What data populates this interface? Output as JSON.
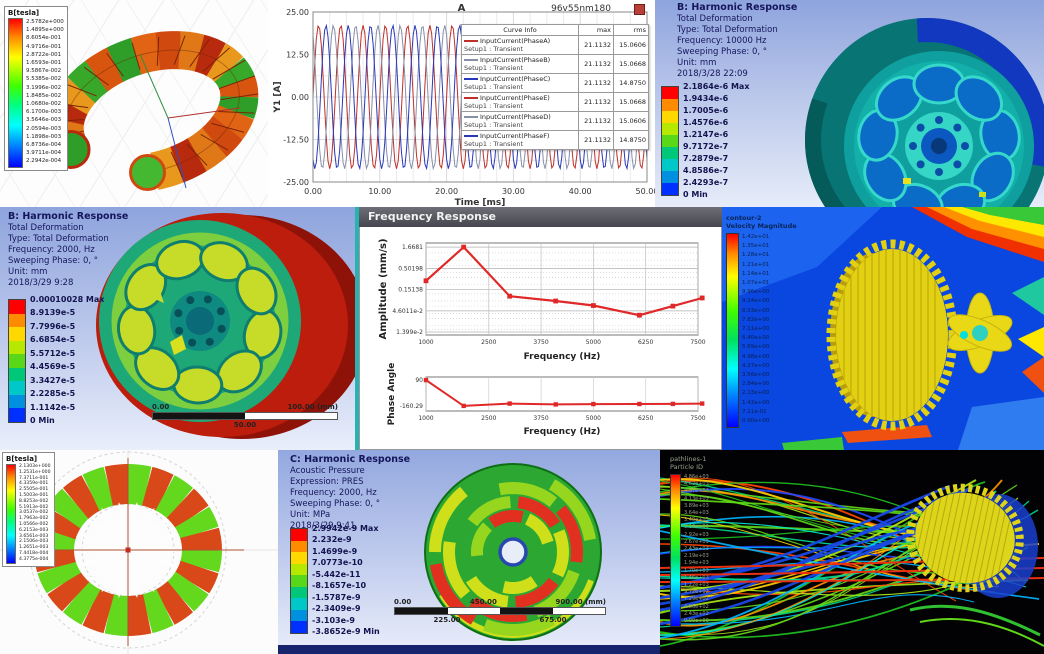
{
  "tiles": {
    "maxwell_torus": {
      "legend_title": "B[tesla]",
      "legend_values": [
        "2.5782e+000",
        "1.4895e+000",
        "8.6054e-001",
        "4.9716e-001",
        "2.8722e-001",
        "1.6593e-001",
        "9.5867e-002",
        "5.5385e-002",
        "3.1996e-002",
        "1.8485e-002",
        "1.0680e-002",
        "6.1700e-003",
        "3.5646e-003",
        "2.0594e-003",
        "1.1898e-003",
        "6.8736e-004",
        "3.9711e-004",
        "2.2942e-004"
      ]
    },
    "current_plot": {
      "table": {
        "col_info": "Curve Info",
        "col_max": "max",
        "col_rms": "rms"
      }
    },
    "harmonic_10000": {
      "info_title": "B: Harmonic Response",
      "info_lines": [
        "Total Deformation",
        "Type: Total Deformation",
        "Frequency: 10000 Hz",
        "Sweeping Phase: 0, °",
        "Unit: mm",
        "2018/3/28 22:09"
      ],
      "legend": [
        "2.1864e-6 Max",
        "1.9434e-6",
        "1.7005e-6",
        "1.4576e-6",
        "1.2147e-6",
        "9.7172e-7",
        "7.2879e-7",
        "4.8586e-7",
        "2.4293e-7",
        "0 Min"
      ]
    },
    "harmonic_2000": {
      "info_title": "B: Harmonic Response",
      "info_lines": [
        "Total Deformation",
        "Type: Total Deformation",
        "Frequency: 2000, Hz",
        "Sweeping Phase: 0, °",
        "Unit: mm",
        "2018/3/29 9:28"
      ],
      "legend": [
        "0.00010028 Max",
        "8.9139e-5",
        "7.7996e-5",
        "6.6854e-5",
        "5.5712e-5",
        "4.4569e-5",
        "3.3427e-5",
        "2.2285e-5",
        "1.1142e-5",
        "0 Min"
      ],
      "ruler": {
        "t0": "0.00",
        "t1": "100.00 (mm)",
        "b0": "50.00"
      }
    },
    "freq_window": {
      "title": "Frequency Response"
    },
    "cfd_velocity": {
      "title_lines": [
        "contour-2",
        "Velocity Magnitude"
      ],
      "values": [
        "1.42e+01",
        "1.35e+01",
        "1.28e+01",
        "1.21e+01",
        "1.14e+01",
        "1.07e+01",
        "9.96e+00",
        "9.24e+00",
        "8.53e+00",
        "7.82e+00",
        "7.11e+00",
        "6.40e+00",
        "5.69e+00",
        "4.98e+00",
        "4.27e+00",
        "3.56e+00",
        "2.84e+00",
        "2.13e+00",
        "1.42e+00",
        "7.11e-01",
        "0.00e+00"
      ]
    },
    "maxwell_stator": {
      "legend_title": "B[tesla]",
      "legend_values": [
        "2.1303e+000",
        "1.2531e+000",
        "7.3711e-001",
        "4.3359e-001",
        "2.5505e-001",
        "1.5003e-001",
        "8.8253e-002",
        "5.1913e-002",
        "3.0537e-002",
        "1.7963e-002",
        "1.0566e-002",
        "6.2153e-003",
        "3.6561e-003",
        "2.1506e-003",
        "1.2651e-003",
        "7.4418e-004",
        "4.3775e-004"
      ]
    },
    "acoustic": {
      "info_title": "C: Harmonic Response",
      "info_lines": [
        "Acoustic Pressure",
        "Expression: PRES",
        "Frequency: 2000, Hz",
        "Sweeping Phase: 0, °",
        "Unit: MPa",
        "2018/3/29 9:41"
      ],
      "legend": [
        "2.9942e-9 Max",
        "2.232e-9",
        "1.4699e-9",
        "7.0773e-10",
        "-5.442e-11",
        "-8.1657e-10",
        "-1.5787e-9",
        "-2.3409e-9",
        "-3.103e-9",
        "-3.8652e-9 Min"
      ],
      "ruler": {
        "t0": "0.00",
        "t1": "450.00",
        "t2": "900.00 (mm)",
        "b0": "225.00",
        "b1": "675.00"
      }
    },
    "pathlines": {
      "title_lines": [
        "pathlines-1",
        "Particle ID"
      ],
      "values": [
        "4.86e+03",
        "4.62e+03",
        "4.37e+03",
        "4.13e+03",
        "3.89e+03",
        "3.64e+03",
        "3.40e+03",
        "3.16e+03",
        "2.92e+03",
        "2.67e+03",
        "2.43e+03",
        "2.19e+03",
        "1.94e+03",
        "1.70e+03",
        "1.46e+03",
        "1.22e+03",
        "9.72e+02",
        "7.29e+02",
        "4.86e+02",
        "2.43e+02",
        "0.00e+00"
      ]
    }
  },
  "chart_data": [
    {
      "id": "phase-currents",
      "type": "line",
      "title": "A",
      "corner_label": "96v55nm180",
      "xlabel": "Time [ms]",
      "ylabel": "Y1 [A]",
      "xlim": [
        0,
        50
      ],
      "ylim": [
        -25,
        25
      ],
      "xticks": [
        "0.00",
        "10.00",
        "20.00",
        "30.00",
        "40.00",
        "50.00"
      ],
      "yticks": [
        "25.00",
        "12.50",
        "0.00",
        "-12.50",
        "-25.00"
      ],
      "grid": true,
      "legend_position": "top-right",
      "signal": {
        "amplitude": 21.1132,
        "period_ms": 3.3333,
        "phases_deg": [
          0,
          120,
          240
        ],
        "colors": [
          "#c03028",
          "#8890a8",
          "#2838b8"
        ]
      },
      "series": [
        {
          "name": "InputCurrent(PhaseA)",
          "setup": "Setup1 : Transient",
          "max": "21.1132",
          "rms": "15.0606",
          "color": "#c03028"
        },
        {
          "name": "InputCurrent(PhaseB)",
          "setup": "Setup1 : Transient",
          "max": "21.1132",
          "rms": "15.0668",
          "color": "#8890a8"
        },
        {
          "name": "InputCurrent(PhaseC)",
          "setup": "Setup1 : Transient",
          "max": "21.1132",
          "rms": "14.8750",
          "color": "#2838b8"
        },
        {
          "name": "InputCurrent(PhaseE)",
          "setup": "Setup1 : Transient",
          "max": "21.1132",
          "rms": "15.0668",
          "color": "#c03028"
        },
        {
          "name": "InputCurrent(PhaseD)",
          "setup": "Setup1 : Transient",
          "max": "21.1132",
          "rms": "15.0606",
          "color": "#8890a8"
        },
        {
          "name": "InputCurrent(PhaseF)",
          "setup": "Setup1 : Transient",
          "max": "21.1132",
          "rms": "14.8750",
          "color": "#2838b8"
        }
      ]
    },
    {
      "id": "amplitude-response",
      "type": "line",
      "ylabel": "Amplitude (mm/s)",
      "xlabel": "Frequency (Hz)",
      "yscale": "log",
      "yticks": [
        "1.6681",
        "0.50198",
        "0.15138",
        "4.6011e-2",
        "1.399e-2"
      ],
      "ytick_vals": [
        1.6681,
        0.50198,
        0.15138,
        0.046011,
        0.01399
      ],
      "xticks": [
        "1000",
        "2500",
        "3750",
        "5000",
        "6250",
        "7500"
      ],
      "xtick_vals": [
        1000,
        2500,
        3750,
        5000,
        6250,
        7500
      ],
      "x": [
        1000,
        1900,
        3000,
        4100,
        5000,
        6100,
        6900,
        7600
      ],
      "y": [
        0.25,
        1.6681,
        0.105,
        0.08,
        0.062,
        0.036,
        0.06,
        0.095
      ],
      "color": "#e02828"
    },
    {
      "id": "phase-response",
      "type": "line",
      "ylabel": "Phase Angle",
      "xlabel": "Frequency (Hz)",
      "yticks": [
        "90",
        "-160.29"
      ],
      "ytick_vals": [
        90,
        -160.29
      ],
      "xticks": [
        "1000",
        "2500",
        "3750",
        "5000",
        "6250",
        "7500"
      ],
      "xtick_vals": [
        1000,
        2500,
        3750,
        5000,
        6250,
        7500
      ],
      "x": [
        1000,
        1900,
        3000,
        4100,
        5000,
        6100,
        6900,
        7600
      ],
      "y": [
        90,
        -160.29,
        -138,
        -146,
        -143,
        -142,
        -141,
        -138
      ],
      "color": "#e02828"
    }
  ]
}
